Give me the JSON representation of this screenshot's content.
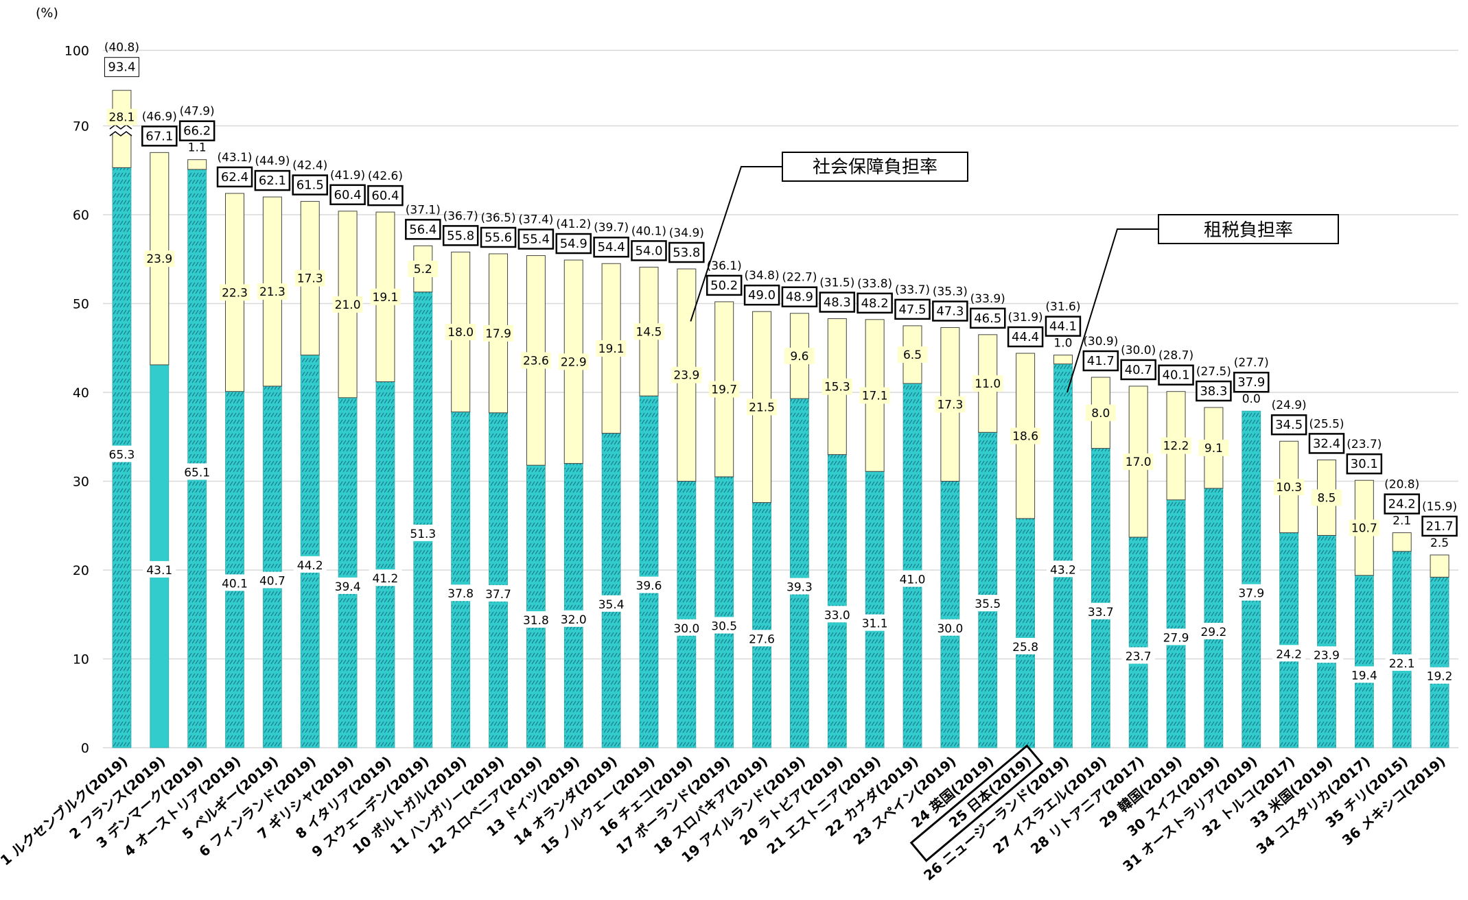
{
  "chart_data": {
    "type": "bar",
    "stacked": true,
    "y_unit": "(%)",
    "ylim": [
      0,
      100
    ],
    "yticks": [
      "0",
      "10",
      "20",
      "30",
      "40",
      "50",
      "60",
      "70",
      "100"
    ],
    "axis_break": true,
    "grid": true,
    "categories": [
      "1 ルクセンブルク(2019)",
      "2 フランス(2019)",
      "3 デンマーク(2019)",
      "4 オーストリア(2019)",
      "5 ベルギー(2019)",
      "6 フィンランド(2019)",
      "7 ギリシャ(2019)",
      "8 イタリア(2019)",
      "9 スウェーデン(2019)",
      "10 ポルトガル(2019)",
      "11 ハンガリー(2019)",
      "12 スロベニア(2019)",
      "13 ドイツ(2019)",
      "14 オランダ(2019)",
      "15 ノルウェー(2019)",
      "16 チェコ(2019)",
      "17 ポーランド(2019)",
      "18 スロバキア(2019)",
      "19 アイルランド(2019)",
      "20 ラトビア(2019)",
      "21 エストニア(2019)",
      "22 カナダ(2019)",
      "23 スペイン(2019)",
      "24 英国(2019)",
      "25 日本(2019)",
      "26 ニュージーランド(2019)",
      "27 イスラエル(2019)",
      "28 リトアニア(2017)",
      "29 韓国(2019)",
      "30 スイス(2019)",
      "31 オーストラリア(2019)",
      "32 トルコ(2017)",
      "33 米国(2019)",
      "34 コスタリカ(2017)",
      "35 チリ(2015)",
      "36 メキシコ(2019)"
    ],
    "highlight_category": "25 日本(2019)",
    "series": [
      {
        "name": "租税負担率",
        "color": "#33cccc",
        "values": [
          65.3,
          43.1,
          65.1,
          40.1,
          40.7,
          44.2,
          39.4,
          41.2,
          51.3,
          37.8,
          37.7,
          31.8,
          32.0,
          35.4,
          39.6,
          30.0,
          30.5,
          27.6,
          39.3,
          33.0,
          31.1,
          41.0,
          30.0,
          35.5,
          25.8,
          43.2,
          33.7,
          23.7,
          27.9,
          29.2,
          37.9,
          24.2,
          23.9,
          19.4,
          22.1,
          19.2
        ]
      },
      {
        "name": "社会保障負担率",
        "color": "#ffffcc",
        "values": [
          28.1,
          23.9,
          1.1,
          22.3,
          21.3,
          17.3,
          21.0,
          19.1,
          5.2,
          18.0,
          17.9,
          23.6,
          22.9,
          19.1,
          14.5,
          23.9,
          19.7,
          21.5,
          9.6,
          15.3,
          17.1,
          6.5,
          17.3,
          11.0,
          18.6,
          1.0,
          8.0,
          17.0,
          12.2,
          9.1,
          0.0,
          10.3,
          8.5,
          10.7,
          2.1,
          2.5
        ]
      }
    ],
    "totals": [
      "93.4",
      "67.1",
      "66.2",
      "62.4",
      "62.1",
      "61.5",
      "60.4",
      "60.4",
      "56.4",
      "55.8",
      "55.6",
      "55.4",
      "54.9",
      "54.4",
      "54.0",
      "53.8",
      "50.2",
      "49.0",
      "48.9",
      "48.3",
      "48.2",
      "47.5",
      "47.3",
      "46.5",
      "44.4",
      "44.1",
      "41.7",
      "40.7",
      "40.1",
      "38.3",
      "37.9",
      "34.5",
      "32.4",
      "30.1",
      "24.2",
      "21.7"
    ],
    "paren_values": [
      "(40.8)",
      "(46.9)",
      "(47.9)",
      "(43.1)",
      "(44.9)",
      "(42.4)",
      "(41.9)",
      "(42.6)",
      "(37.1)",
      "(36.7)",
      "(36.5)",
      "(37.4)",
      "(41.2)",
      "(39.7)",
      "(40.1)",
      "(34.9)",
      "(36.1)",
      "(34.8)",
      "(22.7)",
      "(31.5)",
      "(33.8)",
      "(33.7)",
      "(35.3)",
      "(33.9)",
      "(31.9)",
      "(31.6)",
      "(30.9)",
      "(30.0)",
      "(28.7)",
      "(27.5)",
      "(27.7)",
      "(24.9)",
      "(25.5)",
      "(23.7)",
      "(20.8)",
      "(15.9)"
    ],
    "annotations": [
      {
        "text": "社会保障負担率",
        "points_to": "16 チェコ(2019)"
      },
      {
        "text": "租税負担率",
        "points_to": "26 ニュージーランド(2019)"
      }
    ]
  }
}
